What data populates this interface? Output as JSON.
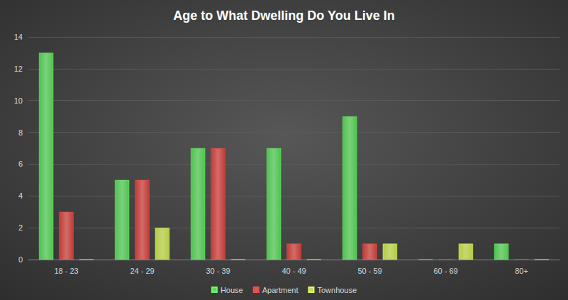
{
  "chart_data": {
    "type": "bar",
    "title": "Age to What Dwelling Do You Live In",
    "categories": [
      "18 - 23",
      "24 - 29",
      "30 - 39",
      "40 - 49",
      "50 - 59",
      "60 - 69",
      "80+"
    ],
    "series": [
      {
        "name": "House",
        "color": "#4fc24f",
        "values": [
          13,
          5,
          7,
          7,
          9,
          0,
          1
        ]
      },
      {
        "name": "Apartment",
        "color": "#c23b36",
        "values": [
          3,
          5,
          7,
          1,
          1,
          0,
          0
        ]
      },
      {
        "name": "Townhouse",
        "color": "#b3cc45",
        "values": [
          0,
          2,
          0,
          0,
          1,
          1,
          0
        ]
      }
    ],
    "ylim": [
      0,
      14
    ],
    "yticks": [
      0,
      2,
      4,
      6,
      8,
      10,
      12,
      14
    ],
    "grid": true,
    "legend": "bottom"
  }
}
